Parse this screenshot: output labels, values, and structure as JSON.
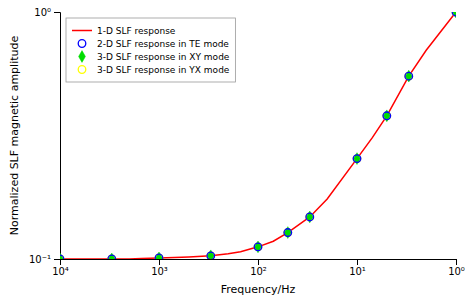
{
  "chart_data": {
    "type": "line",
    "xlabel": "Frequency/Hz",
    "ylabel": "Normalized SLF magnetic amplitude",
    "log": true,
    "grid": false,
    "legend": "upper left",
    "xlim": [
      10000,
      1
    ],
    "ylim": [
      0.1,
      1.0
    ],
    "xticks": [
      {
        "value": 10000,
        "label": "10⁴"
      },
      {
        "value": 1000,
        "label": "10³"
      },
      {
        "value": 100,
        "label": "10²"
      },
      {
        "value": 10,
        "label": "10¹"
      },
      {
        "value": 1,
        "label": "10⁰"
      }
    ],
    "yticks": [
      {
        "value": 0.1,
        "label": "10⁻¹"
      },
      {
        "value": 1.0,
        "label": "10⁰"
      }
    ],
    "series": [
      {
        "name": "1-D SLF response",
        "type": "line",
        "color": "#ff0000",
        "line_style": "solid",
        "x": [
          10000,
          7000,
          5000,
          3000,
          2000,
          1500,
          1000,
          700,
          500,
          300,
          200,
          150,
          100,
          70,
          50,
          30,
          20,
          10,
          7,
          5,
          3,
          2,
          1
        ],
        "values": [
          0.1,
          0.1,
          0.1,
          0.1,
          0.1,
          0.1005,
          0.101,
          0.1015,
          0.102,
          0.103,
          0.105,
          0.107,
          0.112,
          0.118,
          0.128,
          0.148,
          0.175,
          0.255,
          0.31,
          0.38,
          0.55,
          0.7,
          1.0
        ]
      },
      {
        "name": "2-D SLF response in TE mode",
        "type": "scatter",
        "color": "#0000ff",
        "marker": "circle",
        "x": [
          10000,
          3000,
          1000,
          300,
          100,
          50,
          30,
          10,
          5,
          3,
          1
        ],
        "values": [
          0.1,
          0.1,
          0.101,
          0.103,
          0.112,
          0.128,
          0.148,
          0.255,
          0.38,
          0.55,
          1.0
        ]
      },
      {
        "name": "3-D SLF response in XY mode",
        "type": "scatter",
        "color": "#00dd00",
        "marker": "diamond",
        "x": [
          10000,
          3000,
          1000,
          300,
          100,
          50,
          30,
          10,
          5,
          3,
          1
        ],
        "values": [
          0.1,
          0.1,
          0.101,
          0.103,
          0.112,
          0.128,
          0.148,
          0.255,
          0.38,
          0.55,
          1.0
        ]
      },
      {
        "name": "3-D SLF response in YX mode",
        "type": "scatter",
        "color": "#ffff00",
        "marker": "circle",
        "x": [
          10000,
          3000,
          1000,
          300,
          100,
          50,
          30,
          10,
          5,
          3,
          1
        ],
        "values": [
          0.1,
          0.1,
          0.101,
          0.103,
          0.112,
          0.128,
          0.148,
          0.255,
          0.38,
          0.55,
          1.0
        ]
      }
    ]
  }
}
